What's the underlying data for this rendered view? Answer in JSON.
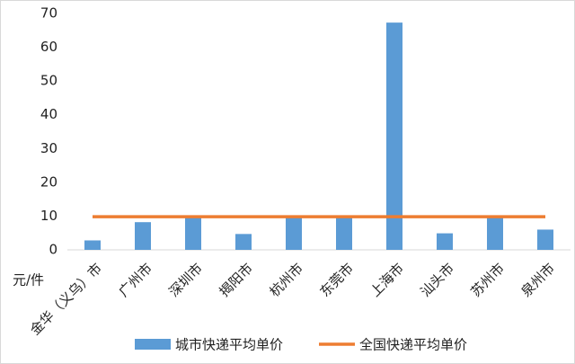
{
  "chart_data": {
    "type": "bar",
    "ylabel": "元/件",
    "categories": [
      "金华（义乌）市",
      "广州市",
      "深圳市",
      "揭阳市",
      "杭州市",
      "东莞市",
      "上海市",
      "汕头市",
      "苏州市",
      "泉州市"
    ],
    "series": [
      {
        "name": "城市快递平均单价",
        "type": "bar",
        "color": "#5b9bd5",
        "values": [
          2.8,
          8.2,
          9.6,
          4.7,
          9.8,
          9.6,
          67.3,
          4.9,
          9.8,
          6.0
        ]
      },
      {
        "name": "全国快递平均单价",
        "type": "line",
        "color": "#ed7d31",
        "values": [
          9.8,
          9.8,
          9.8,
          9.8,
          9.8,
          9.8,
          9.8,
          9.8,
          9.8,
          9.8
        ]
      }
    ],
    "ylim": [
      0,
      70
    ],
    "yticks": [
      0,
      10,
      20,
      30,
      40,
      50,
      60,
      70
    ],
    "grid": false,
    "legend": "bottom"
  }
}
